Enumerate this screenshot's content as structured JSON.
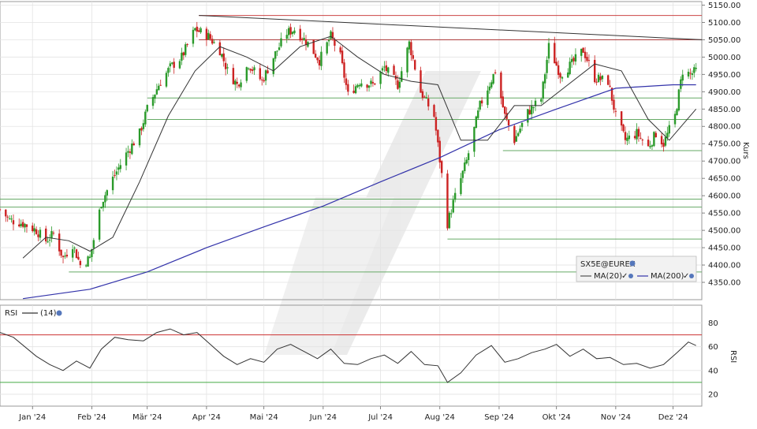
{
  "chart_data": [
    {
      "type": "candlestick",
      "instrument": "SX5E@EUREX",
      "ylabel": "Kurs",
      "ylim": [
        4300,
        5160
      ],
      "yticks": [
        4350,
        4400,
        4450,
        4500,
        4550,
        4600,
        4650,
        4700,
        4750,
        4800,
        4850,
        4900,
        4950,
        5000,
        5050,
        5100,
        5150
      ],
      "ytick_labels": [
        "4350.00",
        "4400.00",
        "4450.00",
        "4500.00",
        "4550.00",
        "4600.00",
        "4650.00",
        "4700.00",
        "4750.00",
        "4800.00",
        "4850.00",
        "4900.00",
        "4950.00",
        "5000.00",
        "5050.00",
        "5100.00",
        "5150.00"
      ],
      "xlim": [
        "2023-12-15",
        "2024-12-16"
      ],
      "xticks": [
        "2024-01-01",
        "2024-02-01",
        "2024-03-01",
        "2024-04-01",
        "2024-05-01",
        "2024-06-01",
        "2024-07-01",
        "2024-08-01",
        "2024-09-01",
        "2024-10-01",
        "2024-11-01",
        "2024-12-01"
      ],
      "xtick_labels": [
        "Jan '24",
        "Feb '24",
        "Mär '24",
        "Apr '24",
        "Mai '24",
        "Jun '24",
        "Jul '24",
        "Aug '24",
        "Sep '24",
        "Okt '24",
        "Nov '24",
        "Dez '24"
      ],
      "grid": true,
      "legend": {
        "placement": "bottom-right",
        "title": "SX5E@EUREX",
        "items": [
          {
            "label": "MA(20)",
            "color": "#333333"
          },
          {
            "label": "MA(200)",
            "color": "#3333aa"
          }
        ]
      },
      "price_path": [
        [
          "2023-12-15",
          4560
        ],
        [
          "2023-12-20",
          4530
        ],
        [
          "2023-12-27",
          4520
        ],
        [
          "2024-01-03",
          4500
        ],
        [
          "2024-01-08",
          4470
        ],
        [
          "2024-01-12",
          4490
        ],
        [
          "2024-01-17",
          4420
        ],
        [
          "2024-01-22",
          4460
        ],
        [
          "2024-01-26",
          4400
        ],
        [
          "2024-01-31",
          4420
        ],
        [
          "2024-02-06",
          4580
        ],
        [
          "2024-02-12",
          4650
        ],
        [
          "2024-02-19",
          4720
        ],
        [
          "2024-02-26",
          4780
        ],
        [
          "2024-03-01",
          4850
        ],
        [
          "2024-03-07",
          4920
        ],
        [
          "2024-03-13",
          4970
        ],
        [
          "2024-03-19",
          5000
        ],
        [
          "2024-03-26",
          5080
        ],
        [
          "2024-04-02",
          5060
        ],
        [
          "2024-04-08",
          5020
        ],
        [
          "2024-04-12",
          4960
        ],
        [
          "2024-04-17",
          4920
        ],
        [
          "2024-04-23",
          4980
        ],
        [
          "2024-04-30",
          4930
        ],
        [
          "2024-05-06",
          5000
        ],
        [
          "2024-05-13",
          5070
        ],
        [
          "2024-05-17",
          5080
        ],
        [
          "2024-05-24",
          5040
        ],
        [
          "2024-05-30",
          4990
        ],
        [
          "2024-06-05",
          5060
        ],
        [
          "2024-06-10",
          5000
        ],
        [
          "2024-06-14",
          4890
        ],
        [
          "2024-06-20",
          4930
        ],
        [
          "2024-06-27",
          4920
        ],
        [
          "2024-07-03",
          4970
        ],
        [
          "2024-07-10",
          4920
        ],
        [
          "2024-07-16",
          5040
        ],
        [
          "2024-07-22",
          4900
        ],
        [
          "2024-07-29",
          4830
        ],
        [
          "2024-08-02",
          4660
        ],
        [
          "2024-08-05",
          4520
        ],
        [
          "2024-08-08",
          4580
        ],
        [
          "2024-08-15",
          4700
        ],
        [
          "2024-08-22",
          4860
        ],
        [
          "2024-08-30",
          4960
        ],
        [
          "2024-09-04",
          4830
        ],
        [
          "2024-09-09",
          4760
        ],
        [
          "2024-09-16",
          4840
        ],
        [
          "2024-09-23",
          4880
        ],
        [
          "2024-09-27",
          5030
        ],
        [
          "2024-10-03",
          4950
        ],
        [
          "2024-10-09",
          4980
        ],
        [
          "2024-10-15",
          5020
        ],
        [
          "2024-10-21",
          4940
        ],
        [
          "2024-10-28",
          4930
        ],
        [
          "2024-11-01",
          4830
        ],
        [
          "2024-11-06",
          4760
        ],
        [
          "2024-11-12",
          4780
        ],
        [
          "2024-11-18",
          4740
        ],
        [
          "2024-11-22",
          4780
        ],
        [
          "2024-11-26",
          4750
        ],
        [
          "2024-12-02",
          4830
        ],
        [
          "2024-12-06",
          4960
        ],
        [
          "2024-12-10",
          4950
        ],
        [
          "2024-12-13",
          4960
        ]
      ],
      "ma20": [
        [
          "2023-12-27",
          4420
        ],
        [
          "2024-01-08",
          4480
        ],
        [
          "2024-01-20",
          4470
        ],
        [
          "2024-01-31",
          4440
        ],
        [
          "2024-02-12",
          4480
        ],
        [
          "2024-02-26",
          4640
        ],
        [
          "2024-03-12",
          4830
        ],
        [
          "2024-03-26",
          4960
        ],
        [
          "2024-04-08",
          5030
        ],
        [
          "2024-04-22",
          5000
        ],
        [
          "2024-05-06",
          4960
        ],
        [
          "2024-05-20",
          5030
        ],
        [
          "2024-06-05",
          5060
        ],
        [
          "2024-06-19",
          5000
        ],
        [
          "2024-07-03",
          4950
        ],
        [
          "2024-07-17",
          4930
        ],
        [
          "2024-07-31",
          4920
        ],
        [
          "2024-08-12",
          4760
        ],
        [
          "2024-08-26",
          4760
        ],
        [
          "2024-09-09",
          4860
        ],
        [
          "2024-09-23",
          4860
        ],
        [
          "2024-10-07",
          4920
        ],
        [
          "2024-10-21",
          4980
        ],
        [
          "2024-11-04",
          4960
        ],
        [
          "2024-11-18",
          4820
        ],
        [
          "2024-11-29",
          4760
        ],
        [
          "2024-12-13",
          4850
        ]
      ],
      "ma200": [
        [
          "2023-12-27",
          4303
        ],
        [
          "2024-01-31",
          4330
        ],
        [
          "2024-03-01",
          4380
        ],
        [
          "2024-04-01",
          4450
        ],
        [
          "2024-05-01",
          4510
        ],
        [
          "2024-06-01",
          4570
        ],
        [
          "2024-07-01",
          4640
        ],
        [
          "2024-08-01",
          4710
        ],
        [
          "2024-09-01",
          4790
        ],
        [
          "2024-10-01",
          4850
        ],
        [
          "2024-11-01",
          4910
        ],
        [
          "2024-12-01",
          4920
        ],
        [
          "2024-12-13",
          4920
        ]
      ],
      "trendlines": [
        {
          "from": [
            "2024-03-28",
            5120
          ],
          "to": [
            "2024-12-16",
            5050
          ],
          "color": "#333333"
        }
      ],
      "horizontal_levels": [
        {
          "value": 5120,
          "from": "2024-03-28",
          "color": "#cc4444"
        },
        {
          "value": 5050,
          "from": "2024-03-28",
          "color": "#aa3333"
        },
        {
          "value": 4882,
          "from": "2024-03-01",
          "color": "#66aa66"
        },
        {
          "value": 4820,
          "from": "2024-03-01",
          "color": "#66aa66"
        },
        {
          "value": 4730,
          "from": "2024-09-03",
          "color": "#66aa66"
        },
        {
          "value": 4590,
          "from": "2023-12-15",
          "color": "#66aa66"
        },
        {
          "value": 4567,
          "from": "2023-12-15",
          "color": "#66aa66"
        },
        {
          "value": 4475,
          "from": "2024-08-05",
          "color": "#66aa66"
        },
        {
          "value": 4380,
          "from": "2024-01-20",
          "color": "#66aa66"
        }
      ]
    },
    {
      "type": "line",
      "name": "RSI",
      "label": "RSI",
      "period_label": "(14)",
      "ylabel": "RSI",
      "ylim": [
        10,
        95
      ],
      "yticks": [
        20,
        40,
        60,
        80
      ],
      "ytick_labels": [
        "20",
        "40",
        "60",
        "80"
      ],
      "overbought": 70,
      "oversold": 30,
      "series": [
        [
          "2023-12-15",
          72
        ],
        [
          "2023-12-22",
          68
        ],
        [
          "2024-01-03",
          52
        ],
        [
          "2024-01-10",
          45
        ],
        [
          "2024-01-17",
          40
        ],
        [
          "2024-01-24",
          48
        ],
        [
          "2024-01-31",
          42
        ],
        [
          "2024-02-06",
          58
        ],
        [
          "2024-02-13",
          68
        ],
        [
          "2024-02-20",
          66
        ],
        [
          "2024-02-28",
          65
        ],
        [
          "2024-03-06",
          72
        ],
        [
          "2024-03-13",
          75
        ],
        [
          "2024-03-20",
          70
        ],
        [
          "2024-03-27",
          72
        ],
        [
          "2024-04-03",
          62
        ],
        [
          "2024-04-10",
          52
        ],
        [
          "2024-04-17",
          45
        ],
        [
          "2024-04-24",
          50
        ],
        [
          "2024-05-01",
          47
        ],
        [
          "2024-05-08",
          58
        ],
        [
          "2024-05-15",
          62
        ],
        [
          "2024-05-22",
          56
        ],
        [
          "2024-05-29",
          50
        ],
        [
          "2024-06-05",
          58
        ],
        [
          "2024-06-12",
          46
        ],
        [
          "2024-06-19",
          45
        ],
        [
          "2024-06-26",
          50
        ],
        [
          "2024-07-03",
          53
        ],
        [
          "2024-07-10",
          46
        ],
        [
          "2024-07-17",
          56
        ],
        [
          "2024-07-24",
          45
        ],
        [
          "2024-07-31",
          44
        ],
        [
          "2024-08-05",
          30
        ],
        [
          "2024-08-12",
          38
        ],
        [
          "2024-08-20",
          53
        ],
        [
          "2024-08-28",
          61
        ],
        [
          "2024-09-04",
          47
        ],
        [
          "2024-09-11",
          50
        ],
        [
          "2024-09-18",
          55
        ],
        [
          "2024-09-25",
          58
        ],
        [
          "2024-10-01",
          62
        ],
        [
          "2024-10-08",
          52
        ],
        [
          "2024-10-15",
          58
        ],
        [
          "2024-10-22",
          50
        ],
        [
          "2024-10-29",
          51
        ],
        [
          "2024-11-05",
          45
        ],
        [
          "2024-11-12",
          46
        ],
        [
          "2024-11-19",
          42
        ],
        [
          "2024-11-26",
          45
        ],
        [
          "2024-12-03",
          55
        ],
        [
          "2024-12-09",
          64
        ],
        [
          "2024-12-13",
          61
        ]
      ]
    }
  ]
}
